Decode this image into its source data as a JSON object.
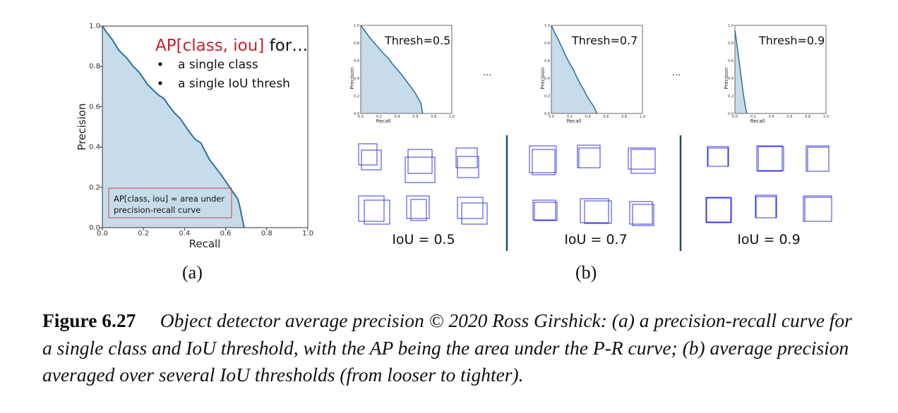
{
  "panel_a": {
    "sublabel": "(a)",
    "title_red": "AP[class, iou]",
    "title_rest": " for…",
    "bullets": [
      "a single class",
      "a single IoU thresh"
    ],
    "box_line1": "AP[class, iou] ≈ area under",
    "box_line2": "precision-recall curve",
    "xlabel": "Recall",
    "ylabel": "Precision",
    "xticks": [
      "0.0",
      "0.2",
      "0.4",
      "0.6",
      "0.8",
      "1.0"
    ],
    "yticks": [
      "0.0",
      "0.2",
      "0.4",
      "0.6",
      "0.8",
      "1.0"
    ]
  },
  "panel_b": {
    "sublabel": "(b)",
    "thumb_xlabel": "Recall",
    "thumb_ylabel": "Precision",
    "thumb_xticks": [
      "0.0",
      "0.2",
      "0.4",
      "0.6",
      "0.8",
      "1.0"
    ],
    "thumb_yticks": [
      "0.0",
      "0.2",
      "0.4",
      "0.6",
      "0.8",
      "1.0"
    ],
    "ellipsis": "...",
    "thresholds": [
      "Thresh=0.5",
      "Thresh=0.7",
      "Thresh=0.9"
    ],
    "iou_labels": [
      "IoU = 0.5",
      "IoU = 0.7",
      "IoU = 0.9"
    ]
  },
  "caption": {
    "label": "Figure 6.27",
    "text": "Object detector average precision © 2020 Ross Girshick: (a) a precision-recall curve for a single class and IoU threshold, with the AP being the area under the P-R curve; (b) average precision averaged over several IoU thresholds (from looser to tighter)."
  },
  "colors": {
    "fill": "#c6dcea",
    "curve": "#2e6f97",
    "accent_red": "#c0222f",
    "box": "#3a3ae0",
    "divider": "#1f4e6e"
  },
  "chart_data": [
    {
      "type": "area",
      "xlabel": "Recall",
      "ylabel": "Precision",
      "xlim": [
        0,
        1
      ],
      "ylim": [
        0,
        1
      ],
      "x": [
        0.0,
        0.02,
        0.05,
        0.08,
        0.1,
        0.12,
        0.15,
        0.18,
        0.2,
        0.22,
        0.25,
        0.27,
        0.3,
        0.32,
        0.35,
        0.38,
        0.4,
        0.42,
        0.45,
        0.48,
        0.5,
        0.52,
        0.55,
        0.58,
        0.6,
        0.62,
        0.64,
        0.66,
        0.67,
        0.68,
        0.69
      ],
      "y": [
        1.0,
        0.97,
        0.93,
        0.88,
        0.86,
        0.84,
        0.8,
        0.77,
        0.74,
        0.71,
        0.68,
        0.66,
        0.64,
        0.61,
        0.57,
        0.54,
        0.51,
        0.48,
        0.44,
        0.42,
        0.38,
        0.34,
        0.3,
        0.26,
        0.23,
        0.2,
        0.17,
        0.14,
        0.1,
        0.05,
        0.0
      ]
    },
    {
      "type": "area",
      "xlabel": "Recall",
      "ylabel": "Precision",
      "xlim": [
        0,
        1
      ],
      "ylim": [
        0,
        1
      ],
      "x": [
        0.0,
        0.05,
        0.1,
        0.15,
        0.2,
        0.25,
        0.3,
        0.35,
        0.4,
        0.45,
        0.5,
        0.55,
        0.6,
        0.63,
        0.66,
        0.68
      ],
      "y": [
        1.0,
        0.93,
        0.86,
        0.8,
        0.74,
        0.68,
        0.63,
        0.56,
        0.5,
        0.44,
        0.37,
        0.3,
        0.23,
        0.17,
        0.12,
        0.0
      ]
    },
    {
      "type": "area",
      "xlabel": "Recall",
      "ylabel": "Precision",
      "xlim": [
        0,
        1
      ],
      "ylim": [
        0,
        1
      ],
      "x": [
        0.0,
        0.04,
        0.08,
        0.12,
        0.16,
        0.2,
        0.24,
        0.28,
        0.32,
        0.36,
        0.4,
        0.44,
        0.47,
        0.5
      ],
      "y": [
        1.0,
        0.91,
        0.83,
        0.74,
        0.65,
        0.57,
        0.5,
        0.41,
        0.33,
        0.26,
        0.18,
        0.12,
        0.07,
        0.0
      ]
    },
    {
      "type": "area",
      "xlabel": "Recall",
      "ylabel": "Precision",
      "xlim": [
        0,
        1
      ],
      "ylim": [
        0,
        1
      ],
      "x": [
        0.0,
        0.02,
        0.04,
        0.06,
        0.08,
        0.1,
        0.12,
        0.13
      ],
      "y": [
        0.94,
        0.8,
        0.64,
        0.48,
        0.32,
        0.17,
        0.05,
        0.0
      ]
    }
  ]
}
